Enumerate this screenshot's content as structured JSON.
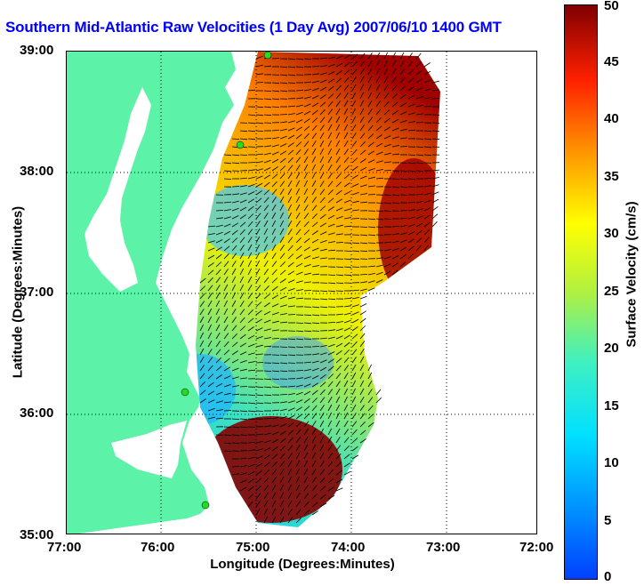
{
  "title": "Southern Mid-Atlantic Raw Velocities (1 Day Avg) 2007/06/10 1400 GMT",
  "map": {
    "xlabel": "Longitude (Degrees:Minutes)",
    "ylabel": "Latitude (Degrees:Minutes)",
    "x_ticks": [
      "77:00",
      "76:00",
      "75:00",
      "74:00",
      "73:00",
      "72:00"
    ],
    "y_ticks": [
      "39:00",
      "38:00",
      "37:00",
      "36:00",
      "35:00"
    ],
    "lon_range": [
      -77,
      -72
    ],
    "lat_range": [
      35,
      39
    ],
    "grid": true,
    "land_color": "#5cf2a8",
    "colors": {
      "title": "#0000ff",
      "vector": "#000000",
      "station": "#22dd22"
    }
  },
  "colorbar": {
    "label": "Surface Velocity (cm/s)",
    "ticks": [
      "0",
      "5",
      "10",
      "15",
      "20",
      "25",
      "30",
      "35",
      "40",
      "45",
      "50"
    ],
    "range": [
      0,
      50
    ],
    "colormap": "jet"
  }
}
